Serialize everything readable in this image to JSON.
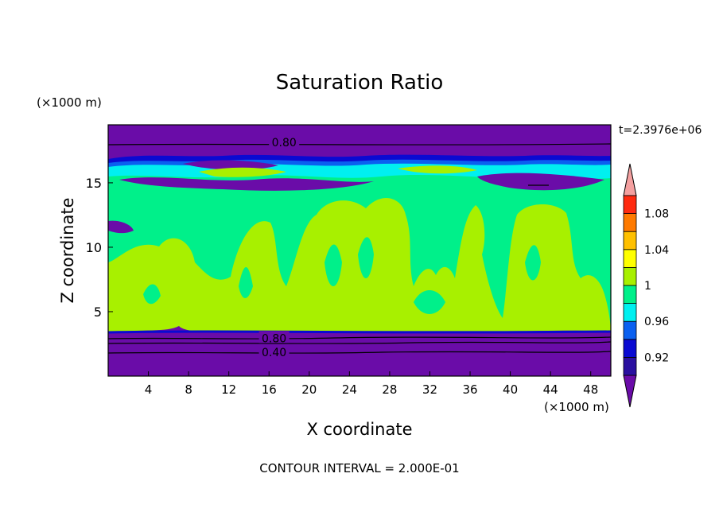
{
  "chart_data": {
    "type": "heatmap",
    "title": "Saturation Ratio",
    "xlabel": "X coordinate",
    "ylabel": "Z coordinate",
    "x_unit": "(×1000 m)",
    "y_unit": "(×1000 m)",
    "xlim": [
      0,
      50
    ],
    "ylim": [
      0,
      19.5
    ],
    "x_ticks": [
      4,
      8,
      12,
      16,
      20,
      24,
      28,
      32,
      36,
      40,
      44,
      48
    ],
    "y_ticks": [
      5,
      10,
      15
    ],
    "time_label": "t=2.3976e+06",
    "footer": "CONTOUR INTERVAL = 2.000E-01",
    "contour_labels": [
      {
        "text": "0.80",
        "x": 17.5,
        "y": 18.2
      },
      {
        "text": "0.80",
        "x": 16.5,
        "y": 3.0
      },
      {
        "text": "0.40",
        "x": 16.5,
        "y": 1.9
      }
    ],
    "colorbar": {
      "levels": [
        {
          "label": "",
          "color": "#6a0ca8"
        },
        {
          "label": "0.92",
          "color": "#2a10a0"
        },
        {
          "label": "",
          "color": "#0a0ad2"
        },
        {
          "label": "0.96",
          "color": "#0a60f0"
        },
        {
          "label": "",
          "color": "#00f0f0"
        },
        {
          "label": "1",
          "color": "#00f08a"
        },
        {
          "label": "",
          "color": "#a8f000"
        },
        {
          "label": "1.04",
          "color": "#ffff00"
        },
        {
          "label": "",
          "color": "#ffc000"
        },
        {
          "label": "1.08",
          "color": "#ff7a00"
        },
        {
          "label": "",
          "color": "#ff2a10"
        },
        {
          "label": "",
          "color": "#f4a0a0"
        }
      ]
    },
    "colors": {
      "dry": "#6a0ca8",
      "deep_blue": "#0a0ad2",
      "blue": "#0a60f0",
      "cyan": "#00f0f0",
      "green": "#00f08a",
      "lime": "#a8f000"
    }
  }
}
